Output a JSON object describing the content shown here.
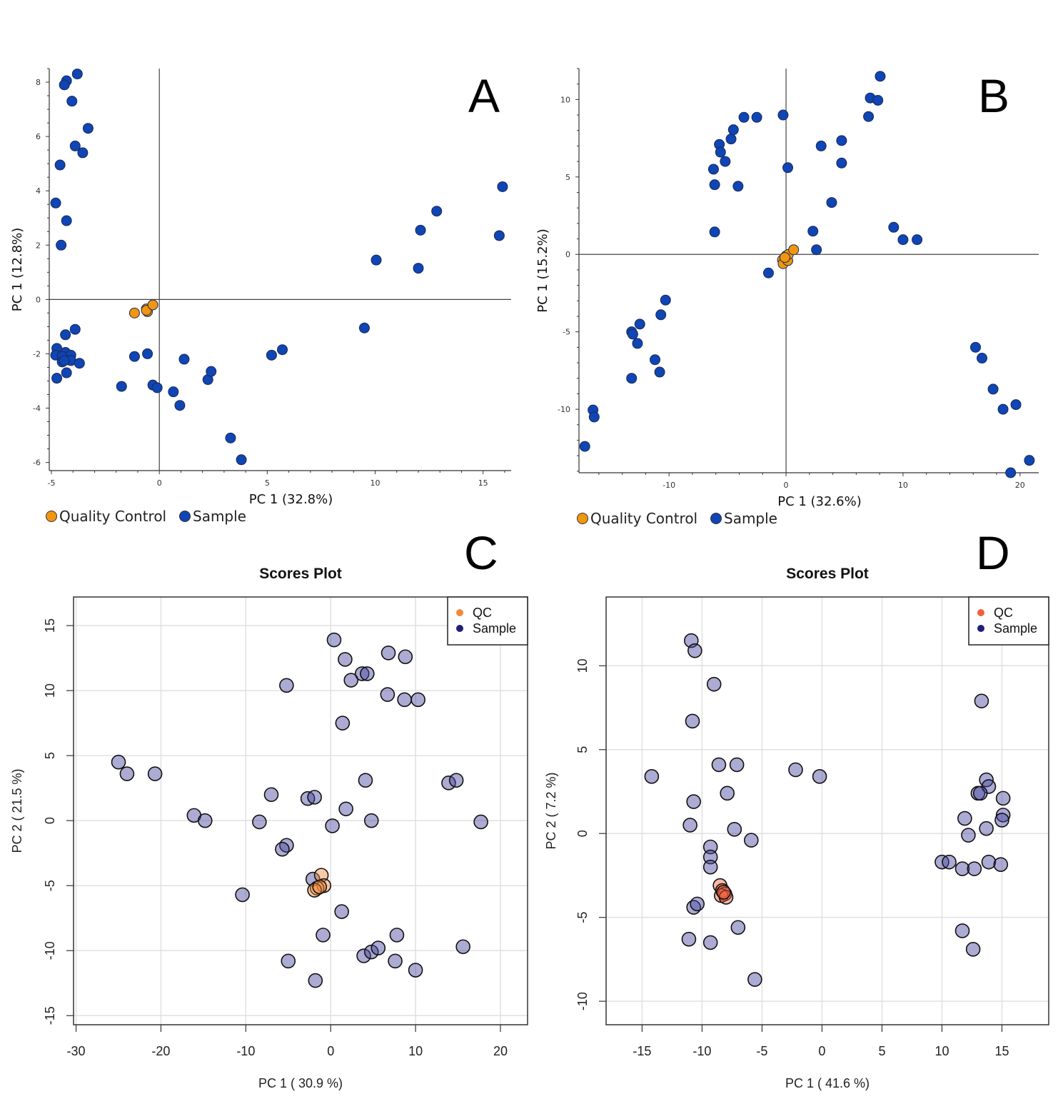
{
  "figure": {
    "panels": [
      "A",
      "B",
      "C",
      "D"
    ]
  },
  "chart_data": [
    {
      "panel": "A",
      "type": "scatter",
      "title": "",
      "xlabel": "PC 1 (32.8%)",
      "ylabel": "PC 1 (12.8%)",
      "xlim": [
        -5.1,
        16.3
      ],
      "ylim": [
        -6.3,
        8.5
      ],
      "xticks": [
        -5,
        0,
        5,
        10,
        15
      ],
      "yticks": [
        -6,
        -4,
        -2,
        0,
        2,
        4,
        6,
        8
      ],
      "grid": false,
      "zero_lines": true,
      "legend": {
        "placement": "bottom-left",
        "entries": [
          "Quality Control",
          "Sample"
        ]
      },
      "series": [
        {
          "name": "Quality Control",
          "color": "#f0960f",
          "points": [
            [
              -1.15,
              -0.5
            ],
            [
              -0.6,
              -0.35
            ],
            [
              -0.55,
              -0.45
            ],
            [
              -0.6,
              -0.4
            ],
            [
              -0.3,
              -0.2
            ]
          ]
        },
        {
          "name": "Sample",
          "color": "#0f45b4",
          "points": [
            [
              -3.8,
              8.3
            ],
            [
              -4.3,
              8.05
            ],
            [
              -4.4,
              7.9
            ],
            [
              -4.05,
              7.3
            ],
            [
              -3.3,
              6.3
            ],
            [
              -3.9,
              5.65
            ],
            [
              -3.55,
              5.4
            ],
            [
              -4.6,
              4.95
            ],
            [
              -4.8,
              3.55
            ],
            [
              -4.3,
              2.9
            ],
            [
              -4.55,
              2.0
            ],
            [
              -3.9,
              -1.1
            ],
            [
              -4.35,
              -1.3
            ],
            [
              -4.75,
              -1.8
            ],
            [
              -4.8,
              -2.05
            ],
            [
              -4.35,
              -1.95
            ],
            [
              -4.1,
              -2.05
            ],
            [
              -4.5,
              -2.1
            ],
            [
              -4.5,
              -2.3
            ],
            [
              -4.1,
              -2.25
            ],
            [
              -4.4,
              -2.25
            ],
            [
              -3.7,
              -2.35
            ],
            [
              -4.3,
              -2.7
            ],
            [
              -4.75,
              -2.9
            ],
            [
              -1.15,
              -2.1
            ],
            [
              -0.55,
              -2.0
            ],
            [
              1.15,
              -2.2
            ],
            [
              -1.75,
              -3.2
            ],
            [
              -0.3,
              -3.15
            ],
            [
              -0.1,
              -3.25
            ],
            [
              0.65,
              -3.4
            ],
            [
              0.95,
              -3.9
            ],
            [
              2.25,
              -2.95
            ],
            [
              2.4,
              -2.65
            ],
            [
              3.3,
              -5.1
            ],
            [
              3.8,
              -5.9
            ],
            [
              5.2,
              -2.05
            ],
            [
              5.7,
              -1.85
            ],
            [
              9.5,
              -1.05
            ],
            [
              10.05,
              1.45
            ],
            [
              12.0,
              1.15
            ],
            [
              12.1,
              2.55
            ],
            [
              12.85,
              3.25
            ],
            [
              15.75,
              2.35
            ],
            [
              15.9,
              4.15
            ]
          ]
        }
      ]
    },
    {
      "panel": "B",
      "type": "scatter",
      "title": "",
      "xlabel": "PC 1 (32.6%)",
      "ylabel": "PC 1 (15.2%)",
      "xlim": [
        -17.7,
        21.6
      ],
      "ylim": [
        -14.1,
        12.0
      ],
      "xticks": [
        -10,
        0,
        10,
        20
      ],
      "yticks": [
        -10,
        -5,
        0,
        5,
        10
      ],
      "grid": false,
      "zero_lines": true,
      "legend": {
        "placement": "bottom-left",
        "entries": [
          "Quality Control",
          "Sample"
        ]
      },
      "series": [
        {
          "name": "Quality Control",
          "color": "#f0960f",
          "points": [
            [
              -0.3,
              -0.35
            ],
            [
              -0.25,
              -0.6
            ],
            [
              0.0,
              -0.1
            ],
            [
              0.15,
              -0.4
            ],
            [
              0.2,
              0.0
            ],
            [
              0.65,
              0.3
            ],
            [
              -0.1,
              -0.2
            ]
          ]
        },
        {
          "name": "Sample",
          "color": "#0f45b4",
          "points": [
            [
              -6.2,
              5.5
            ],
            [
              -6.1,
              4.5
            ],
            [
              -5.7,
              7.1
            ],
            [
              -5.6,
              6.6
            ],
            [
              -5.2,
              6.0
            ],
            [
              -4.7,
              7.45
            ],
            [
              -4.5,
              8.05
            ],
            [
              -3.6,
              8.85
            ],
            [
              -2.5,
              8.85
            ],
            [
              -0.25,
              9.0
            ],
            [
              0.15,
              5.6
            ],
            [
              -4.1,
              4.4
            ],
            [
              -6.1,
              1.45
            ],
            [
              -1.5,
              -1.2
            ],
            [
              2.3,
              1.5
            ],
            [
              2.6,
              0.3
            ],
            [
              3.9,
              3.35
            ],
            [
              3.0,
              7.0
            ],
            [
              4.75,
              7.35
            ],
            [
              4.75,
              5.9
            ],
            [
              7.05,
              8.9
            ],
            [
              7.2,
              10.1
            ],
            [
              7.85,
              9.95
            ],
            [
              8.05,
              11.5
            ],
            [
              9.2,
              1.75
            ],
            [
              10.0,
              0.95
            ],
            [
              11.2,
              0.95
            ],
            [
              -10.3,
              -2.95
            ],
            [
              -10.7,
              -3.9
            ],
            [
              -12.5,
              -4.5
            ],
            [
              -13.2,
              -5.0
            ],
            [
              -13.1,
              -5.15
            ],
            [
              -12.7,
              -5.75
            ],
            [
              -11.2,
              -6.8
            ],
            [
              -10.8,
              -7.6
            ],
            [
              -13.2,
              -8.0
            ],
            [
              -16.5,
              -10.05
            ],
            [
              -16.4,
              -10.5
            ],
            [
              -17.2,
              -12.4
            ],
            [
              16.2,
              -6.0
            ],
            [
              16.75,
              -6.7
            ],
            [
              17.7,
              -8.7
            ],
            [
              18.55,
              -10.0
            ],
            [
              19.65,
              -9.7
            ],
            [
              19.2,
              -14.1
            ],
            [
              20.8,
              -13.3
            ]
          ]
        }
      ]
    },
    {
      "panel": "C",
      "type": "scatter",
      "title": "Scores Plot",
      "xlabel": "PC 1 ( 30.9 %)",
      "ylabel": "PC 2 ( 21.5 %)",
      "xlim": [
        -30.3,
        23.2
      ],
      "ylim": [
        -15.7,
        17.2
      ],
      "xticks": [
        -30,
        -20,
        -10,
        0,
        10,
        20
      ],
      "yticks": [
        -15,
        -10,
        -5,
        0,
        5,
        10,
        15
      ],
      "grid": true,
      "legend": {
        "placement": "top-right",
        "entries": [
          "QC",
          "Sample"
        ]
      },
      "series": [
        {
          "name": "QC",
          "color": "#f08a3c",
          "points": [
            [
              -1.1,
              -4.2
            ],
            [
              -0.8,
              -5.0
            ],
            [
              -1.6,
              -5.2
            ],
            [
              -1.9,
              -5.35
            ],
            [
              -1.3,
              -5.1
            ]
          ]
        },
        {
          "name": "Sample",
          "color": "#1f1f7a",
          "points": [
            [
              0.4,
              13.9
            ],
            [
              1.7,
              12.4
            ],
            [
              6.8,
              12.9
            ],
            [
              8.8,
              12.6
            ],
            [
              3.7,
              11.3
            ],
            [
              4.3,
              11.3
            ],
            [
              2.4,
              10.8
            ],
            [
              -5.2,
              10.4
            ],
            [
              6.7,
              9.7
            ],
            [
              8.7,
              9.3
            ],
            [
              10.3,
              9.3
            ],
            [
              1.4,
              7.5
            ],
            [
              -25.0,
              4.5
            ],
            [
              -24.0,
              3.6
            ],
            [
              -20.7,
              3.6
            ],
            [
              -16.1,
              0.4
            ],
            [
              -14.8,
              0.0
            ],
            [
              -8.4,
              -0.1
            ],
            [
              -7.0,
              2.0
            ],
            [
              -2.7,
              1.7
            ],
            [
              -1.9,
              1.8
            ],
            [
              4.1,
              3.1
            ],
            [
              1.8,
              0.9
            ],
            [
              0.2,
              -0.4
            ],
            [
              4.8,
              0.0
            ],
            [
              -5.2,
              -1.9
            ],
            [
              -5.7,
              -2.2
            ],
            [
              13.9,
              2.9
            ],
            [
              14.8,
              3.1
            ],
            [
              17.7,
              -0.1
            ],
            [
              -2.1,
              -4.5
            ],
            [
              -10.4,
              -5.7
            ],
            [
              1.3,
              -7.0
            ],
            [
              -0.9,
              -8.8
            ],
            [
              3.9,
              -10.4
            ],
            [
              4.8,
              -10.1
            ],
            [
              5.6,
              -9.8
            ],
            [
              7.8,
              -8.8
            ],
            [
              7.6,
              -10.8
            ],
            [
              10.0,
              -11.5
            ],
            [
              15.6,
              -9.7
            ],
            [
              -5.0,
              -10.8
            ],
            [
              -1.8,
              -12.3
            ]
          ]
        }
      ]
    },
    {
      "panel": "D",
      "type": "scatter",
      "title": "Scores Plot",
      "xlabel": "PC 1 ( 41.6 %)",
      "ylabel": "PC 2 ( 7.2 %)",
      "xlim": [
        -18.0,
        18.9
      ],
      "ylim": [
        -11.4,
        14.1
      ],
      "xticks": [
        -15,
        -10,
        -5,
        0,
        5,
        10,
        15
      ],
      "yticks": [
        -10,
        -5,
        0,
        5,
        10
      ],
      "grid": true,
      "legend": {
        "placement": "top-right",
        "entries": [
          "QC",
          "Sample"
        ]
      },
      "series": [
        {
          "name": "QC",
          "color": "#f0603c",
          "points": [
            [
              -8.5,
              -3.1
            ],
            [
              -8.3,
              -3.4
            ],
            [
              -8.1,
              -3.6
            ],
            [
              -8.4,
              -3.7
            ],
            [
              -8.0,
              -3.8
            ],
            [
              -8.2,
              -3.5
            ]
          ]
        },
        {
          "name": "Sample",
          "color": "#1f1f7a",
          "points": [
            [
              -10.9,
              11.5
            ],
            [
              -10.6,
              10.9
            ],
            [
              -9.0,
              8.9
            ],
            [
              -10.8,
              6.7
            ],
            [
              -14.2,
              3.4
            ],
            [
              -8.6,
              4.1
            ],
            [
              -7.1,
              4.1
            ],
            [
              -7.9,
              2.4
            ],
            [
              -10.7,
              1.9
            ],
            [
              -11.0,
              0.5
            ],
            [
              -7.3,
              0.25
            ],
            [
              -5.9,
              -0.4
            ],
            [
              -9.3,
              -0.8
            ],
            [
              -9.3,
              -1.4
            ],
            [
              -9.3,
              -2.0
            ],
            [
              -10.7,
              -4.4
            ],
            [
              -10.4,
              -4.2
            ],
            [
              -7.0,
              -5.6
            ],
            [
              -11.1,
              -6.3
            ],
            [
              -9.3,
              -6.5
            ],
            [
              -5.6,
              -8.7
            ],
            [
              -2.2,
              3.8
            ],
            [
              -0.2,
              3.4
            ],
            [
              13.3,
              7.9
            ],
            [
              13.7,
              3.2
            ],
            [
              13.9,
              2.8
            ],
            [
              13.0,
              2.4
            ],
            [
              13.2,
              2.4
            ],
            [
              15.1,
              2.1
            ],
            [
              15.1,
              1.1
            ],
            [
              15.0,
              0.8
            ],
            [
              11.9,
              0.9
            ],
            [
              12.2,
              -0.1
            ],
            [
              13.7,
              0.3
            ],
            [
              10.0,
              -1.7
            ],
            [
              10.6,
              -1.7
            ],
            [
              11.7,
              -2.1
            ],
            [
              12.7,
              -2.1
            ],
            [
              13.9,
              -1.7
            ],
            [
              14.9,
              -1.85
            ],
            [
              11.7,
              -5.8
            ],
            [
              12.6,
              -6.9
            ]
          ]
        }
      ]
    }
  ]
}
